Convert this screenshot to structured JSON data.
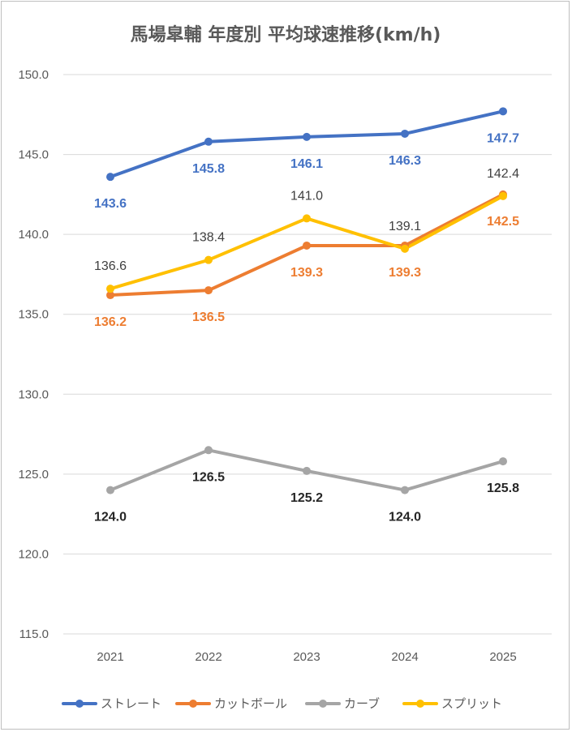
{
  "chart_data": {
    "type": "line",
    "title": "馬場皐輔 年度別 平均球速推移(km/h)",
    "categories": [
      "2021",
      "2022",
      "2023",
      "2024",
      "2025"
    ],
    "ylim": [
      115,
      150
    ],
    "yticks": [
      "115.0",
      "120.0",
      "125.0",
      "130.0",
      "135.0",
      "140.0",
      "145.0",
      "150.0"
    ],
    "grid": true,
    "legend_position": "bottom",
    "series": [
      {
        "name": "ストレート",
        "color": "#4472C4",
        "values": [
          143.6,
          145.8,
          146.1,
          146.3,
          147.7
        ],
        "labels": [
          "143.6",
          "145.8",
          "146.1",
          "146.3",
          "147.7"
        ],
        "label_color": "#4472C4",
        "label_bold": true,
        "label_pos": "below"
      },
      {
        "name": "カットボール",
        "color": "#ED7D31",
        "values": [
          136.2,
          136.5,
          139.3,
          139.3,
          142.5
        ],
        "labels": [
          "136.2",
          "136.5",
          "139.3",
          "139.3",
          "142.5"
        ],
        "label_color": "#ED7D31",
        "label_bold": true,
        "label_pos": "below"
      },
      {
        "name": "カーブ",
        "color": "#A5A5A5",
        "values": [
          124.0,
          126.5,
          125.2,
          124.0,
          125.8
        ],
        "labels": [
          "124.0",
          "126.5",
          "125.2",
          "124.0",
          "125.8"
        ],
        "label_color": "#262626",
        "label_bold": true,
        "label_pos": "below"
      },
      {
        "name": "スプリット",
        "color": "#FFC000",
        "values": [
          136.6,
          138.4,
          141.0,
          139.1,
          142.4
        ],
        "labels": [
          "136.6",
          "138.4",
          "141.0",
          "139.1",
          "142.4"
        ],
        "label_color": "#404040",
        "label_bold": false,
        "label_pos": "above"
      }
    ]
  }
}
